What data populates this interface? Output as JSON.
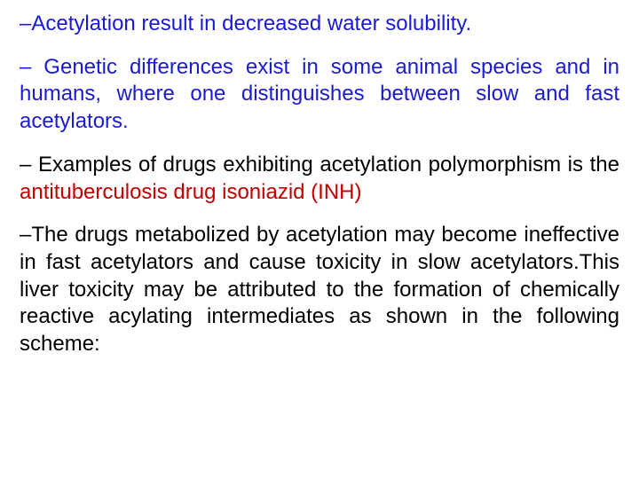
{
  "colors": {
    "blue": "#1a1ad6",
    "black": "#000000",
    "red": "#c00000"
  },
  "p1": {
    "dash": "–",
    "text": "Acetylation result in decreased water solubility."
  },
  "p2": {
    "dash": "–",
    "text": " Genetic differences exist in some animal species and in humans, where one distinguishes between slow and fast acetylators."
  },
  "p3": {
    "dash": "–",
    "lead": " Examples of drugs exhibiting acetylation polymorphism is the ",
    "drug": "antituberculosis drug isoniazid (INH)"
  },
  "p4": {
    "dash": "–",
    "text": "The drugs metabolized by acetylation may become ineffective in fast acetylators and cause toxicity in slow acetylators.This liver toxicity may be attributed to the formation of chemically reactive acylating intermediates as shown in the following scheme:"
  }
}
